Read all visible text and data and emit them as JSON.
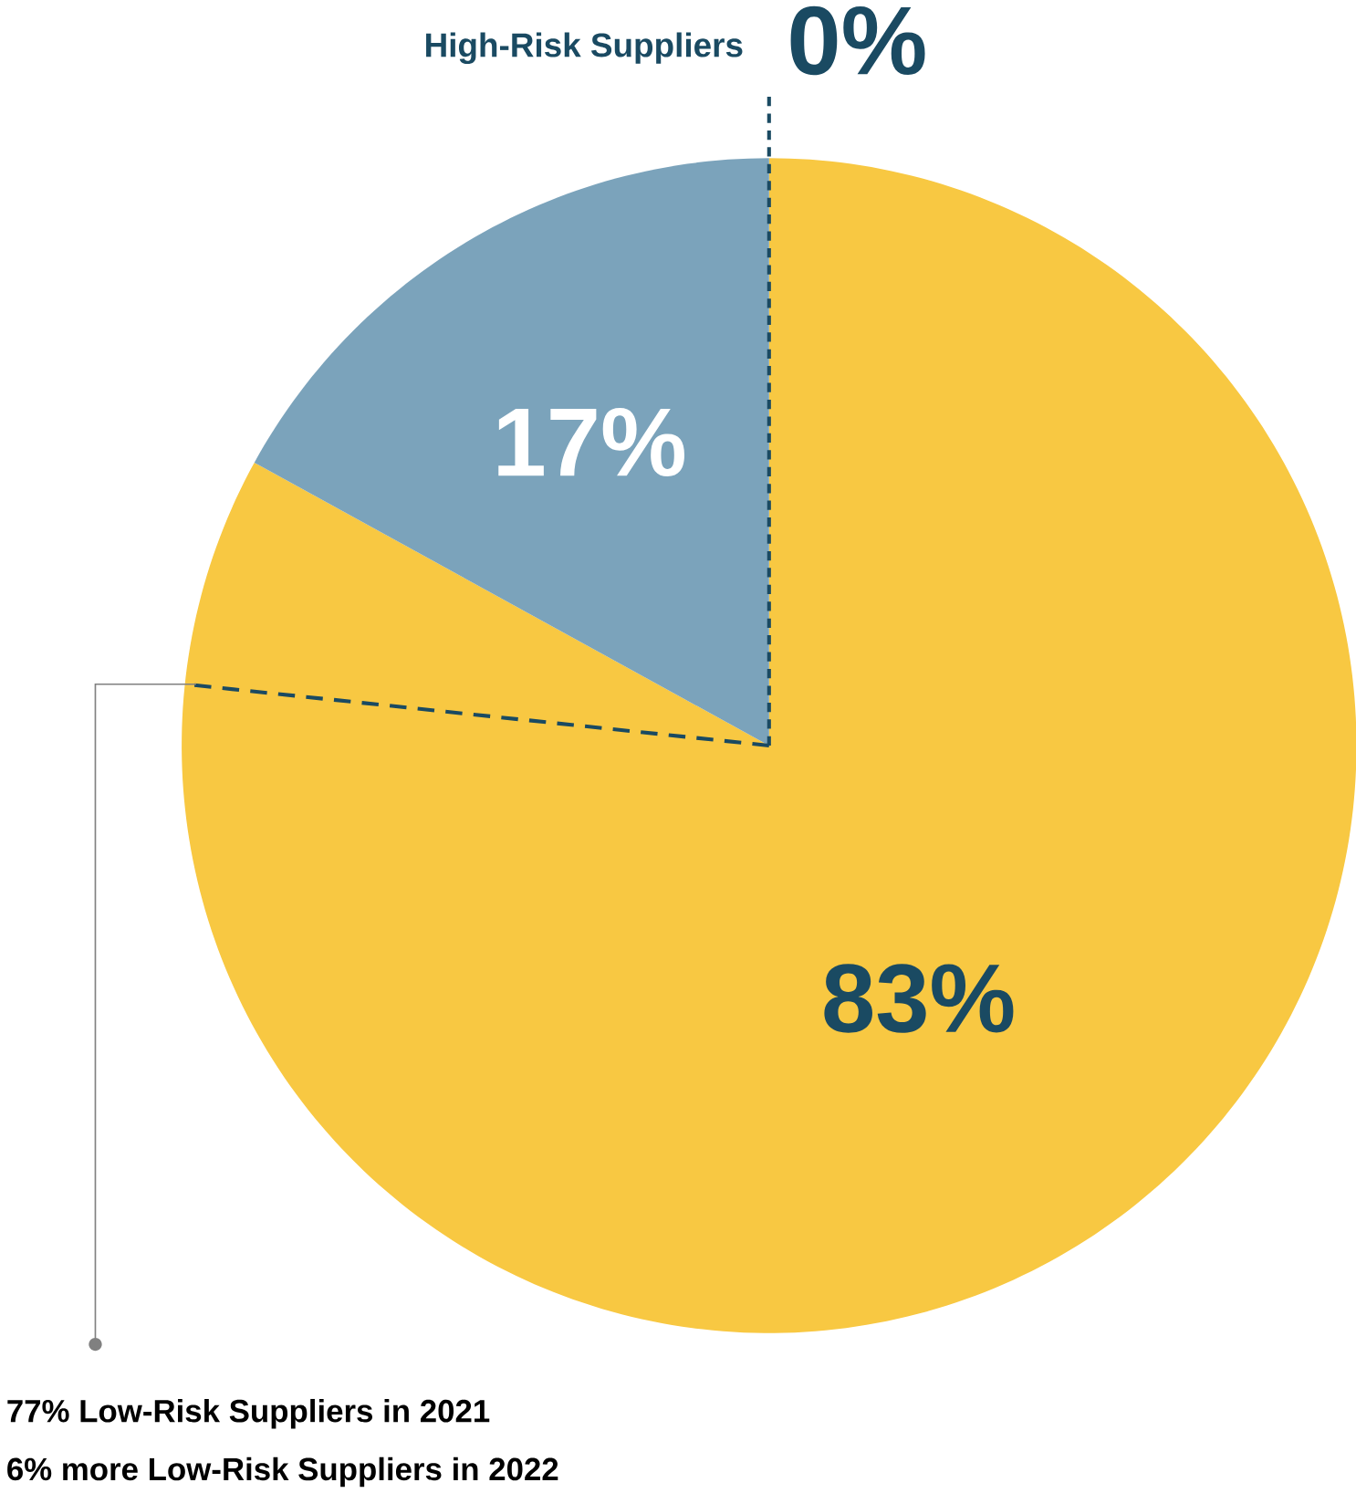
{
  "chart_data": {
    "type": "pie",
    "categories": [
      null,
      null,
      "High-Risk Suppliers"
    ],
    "values": [
      83,
      17,
      0
    ],
    "colors": [
      "#f8c842",
      "#7ba3bb",
      "#1a4a62"
    ],
    "value_labels": [
      "83%",
      "17%",
      "0%"
    ],
    "annotations": [
      "77% Low-Risk Suppliers in 2021",
      "6% more Low-Risk Suppliers in 2022"
    ]
  }
}
